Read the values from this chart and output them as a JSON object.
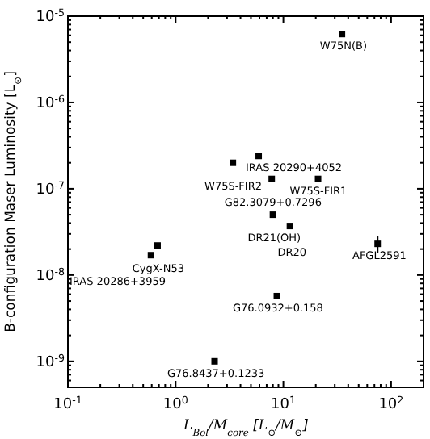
{
  "chart_data": {
    "type": "scatter",
    "xlabel": "L$_{Bol}$/M$_{core}$ [L$_{⊙}$/M$_{⊙}$]",
    "ylabel": "B-configuration Maser Luminosity [L$_{⊙}$]",
    "x": [
      35,
      5.9,
      3.4,
      7.8,
      21,
      8,
      11.5,
      75,
      0.68,
      0.59,
      8.7,
      2.3
    ],
    "series": [
      {
        "color": "#000000",
        "values": [
          6.2e-06,
          2.4e-07,
          2e-07,
          1.3e-07,
          1.3e-07,
          5e-08,
          3.7e-08,
          2.3e-08,
          2.2e-08,
          1.7e-08,
          5.7e-09,
          1e-09
        ],
        "errors": [
          null,
          null,
          null,
          null,
          null,
          null,
          null,
          [
            1.8e-08,
            2.8e-08
          ],
          null,
          null,
          null,
          null
        ]
      }
    ],
    "marker": "square",
    "log": "xy",
    "xlim": [
      0.1,
      200
    ],
    "ylim": [
      5e-10,
      1e-05
    ],
    "xticks": [
      {
        "value": 0.1,
        "label": "10$^{-1}$"
      },
      {
        "value": 1,
        "label": "10$^{0}$"
      },
      {
        "value": 10,
        "label": "10$^{1}$"
      },
      {
        "value": 100,
        "label": "10$^{2}$"
      }
    ],
    "yticks": [
      {
        "value": 1e-09,
        "label": "10$^{-9}$"
      },
      {
        "value": 1e-08,
        "label": "10$^{-8}$"
      },
      {
        "value": 1e-07,
        "label": "10$^{-7}$"
      },
      {
        "value": 1e-06,
        "label": "10$^{-6}$"
      },
      {
        "value": 1e-05,
        "label": "10$^{-5}$"
      }
    ],
    "annotations": [
      {
        "text": "W75N(B)",
        "x": 35,
        "y": 6.2e-06
      },
      {
        "text": "IRAS 20290+4052",
        "x": 5.9,
        "y": 2.4e-07
      },
      {
        "text": "W75S-FIR2",
        "x": 3.4,
        "y": 2e-07
      },
      {
        "text": "G82.3079+0.7296",
        "x": 7.8,
        "y": 1.3e-07
      },
      {
        "text": "W75S-FIR1",
        "x": 21,
        "y": 1.3e-07
      },
      {
        "text": "DR21(OH)",
        "x": 8,
        "y": 5e-08
      },
      {
        "text": "DR20",
        "x": 11.5,
        "y": 3.7e-08
      },
      {
        "text": "AFGL2591",
        "x": 75,
        "y": 2.3e-08
      },
      {
        "text": "CygX-N53",
        "x": 0.68,
        "y": 2.2e-08
      },
      {
        "text": "IRAS 20286+3959",
        "x": 0.59,
        "y": 1.7e-08
      },
      {
        "text": "G76.0932+0.158",
        "x": 8.7,
        "y": 5.7e-09
      },
      {
        "text": "G76.8437+0.1233",
        "x": 2.3,
        "y": 1e-09
      }
    ]
  }
}
